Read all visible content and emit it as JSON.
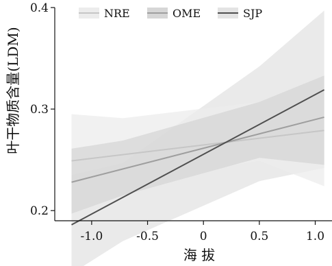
{
  "chart_data": {
    "type": "line",
    "xlabel": "海 拔",
    "ylabel": "叶干物质含量(LDM)",
    "xlim": [
      -1.33,
      1.15
    ],
    "ylim": [
      0.19,
      0.4
    ],
    "x_ticks": [
      -1.0,
      -0.5,
      0,
      0.5,
      1.0
    ],
    "x_tick_labels": [
      "-1.0",
      "-0.5",
      "0",
      "0.5",
      "1.0"
    ],
    "y_ticks": [
      0.2,
      0.3,
      0.4
    ],
    "y_tick_labels": [
      "0.2",
      "0.3",
      "0.4"
    ],
    "legend_position": "top",
    "series": [
      {
        "name": "NRE",
        "color": "#c6c6c6",
        "band_color": "#ececec",
        "x": [
          -1.18,
          1.08
        ],
        "y": [
          0.249,
          0.279
        ],
        "band_x": [
          -1.18,
          -0.72,
          0.5,
          1.08
        ],
        "band_lower": [
          0.205,
          0.226,
          0.249,
          0.224
        ],
        "band_upper": [
          0.295,
          0.291,
          0.307,
          0.333
        ]
      },
      {
        "name": "OME",
        "color": "#9e9e9e",
        "band_color": "#d6d6d6",
        "x": [
          -1.18,
          1.08
        ],
        "y": [
          0.228,
          0.292
        ],
        "band_x": [
          -1.18,
          -0.72,
          0.5,
          1.08
        ],
        "band_lower": [
          0.197,
          0.215,
          0.252,
          0.245
        ],
        "band_upper": [
          0.261,
          0.269,
          0.307,
          0.333
        ]
      },
      {
        "name": "SJP",
        "color": "#4f4f4f",
        "band_color": "#e3e3e3",
        "x": [
          -1.18,
          1.08
        ],
        "y": [
          0.186,
          0.319
        ],
        "band_x": [
          -1.18,
          -0.72,
          0.5,
          1.08
        ],
        "band_lower": [
          0.138,
          0.17,
          0.229,
          0.242
        ],
        "band_upper": [
          0.235,
          0.247,
          0.342,
          0.397
        ]
      }
    ]
  }
}
